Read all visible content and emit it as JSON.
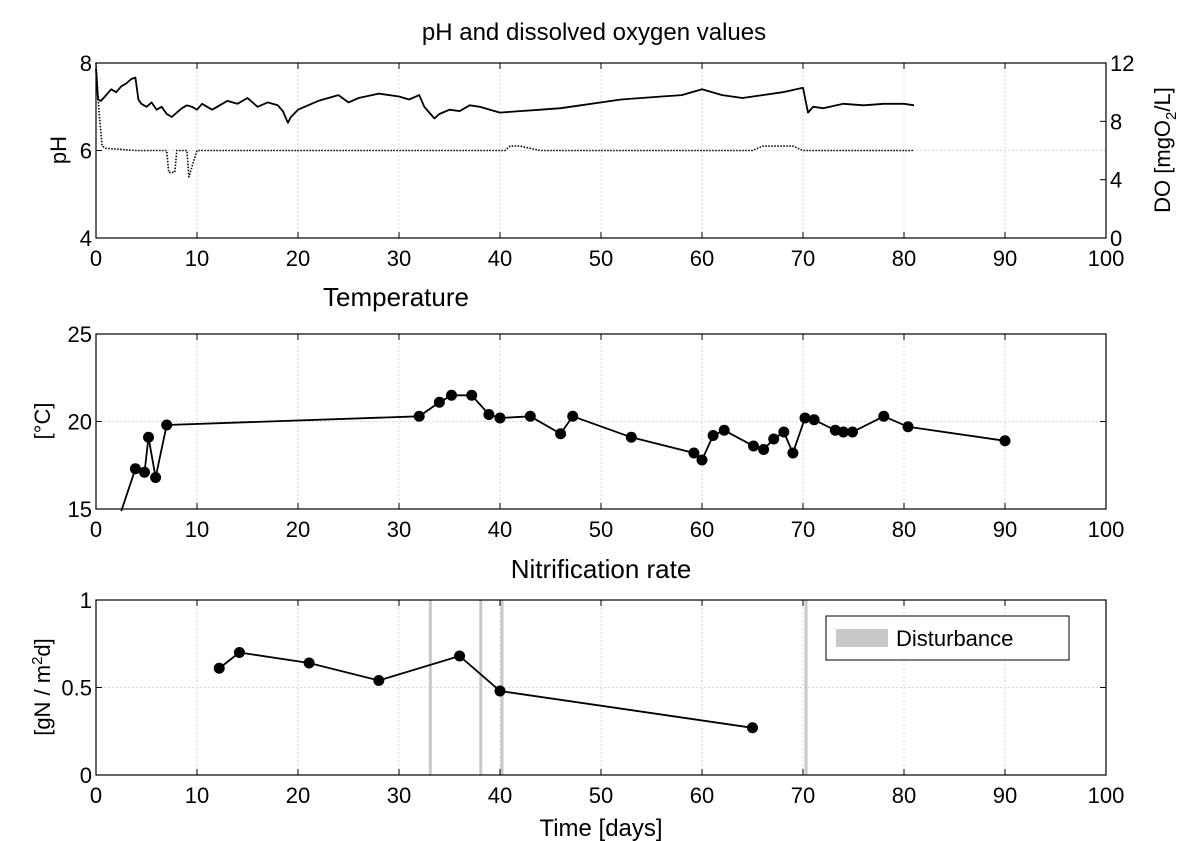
{
  "chart_data": [
    {
      "type": "line",
      "title": "pH and dissolved oxygen values",
      "xlabel": "",
      "ylabel": "pH",
      "ylabel_right": "DO [mgO2/L]",
      "xlim": [
        0,
        100
      ],
      "ylim": [
        4,
        8
      ],
      "ylim_right": [
        0,
        12
      ],
      "xticks": [
        0,
        10,
        20,
        30,
        40,
        50,
        60,
        70,
        80,
        90,
        100
      ],
      "yticks": [
        4,
        6,
        8
      ],
      "yticks_right": [
        0,
        4,
        8,
        12
      ],
      "grid": true,
      "series": [
        {
          "axis": "right",
          "style": "solid",
          "x": [
            0,
            0.2,
            0.5,
            1,
            1.5,
            2,
            2.5,
            3,
            3.5,
            3.9,
            4.2,
            4.5,
            5,
            5.5,
            6,
            6.5,
            7,
            7.5,
            8,
            8.5,
            9,
            9.5,
            10,
            10.5,
            11,
            11.5,
            12,
            13,
            14,
            15,
            16,
            17,
            18,
            18.5,
            19,
            19.3,
            20,
            22,
            24,
            25,
            26,
            28,
            30,
            31,
            32,
            32.5,
            33,
            33.5,
            34,
            35,
            36,
            37,
            38,
            39,
            40,
            42,
            44,
            46,
            48,
            50,
            52,
            54,
            56,
            58,
            60,
            62,
            64,
            66,
            68,
            70,
            70.5,
            71,
            72,
            74,
            76,
            78,
            80,
            81
          ],
          "values": [
            11.6,
            9.5,
            9.4,
            9.8,
            10.2,
            10.0,
            10.4,
            10.6,
            10.9,
            11.0,
            9.5,
            9.2,
            9.0,
            9.3,
            8.8,
            9.0,
            8.5,
            8.3,
            8.6,
            8.9,
            9.1,
            9.0,
            8.8,
            9.2,
            9.0,
            8.8,
            9.0,
            9.4,
            9.2,
            9.6,
            9.0,
            9.3,
            9.1,
            8.7,
            7.9,
            8.3,
            8.8,
            9.4,
            9.8,
            9.3,
            9.6,
            9.9,
            9.7,
            9.5,
            9.8,
            9.0,
            8.6,
            8.2,
            8.5,
            8.8,
            8.7,
            9.1,
            9.0,
            8.8,
            8.6,
            8.7,
            8.8,
            8.9,
            9.1,
            9.3,
            9.5,
            9.6,
            9.7,
            9.8,
            10.2,
            9.8,
            9.6,
            9.8,
            10.0,
            10.3,
            8.6,
            9.0,
            8.9,
            9.2,
            9.1,
            9.2,
            9.2,
            9.1
          ]
        },
        {
          "axis": "left",
          "style": "dotted",
          "x": [
            0,
            0.3,
            0.6,
            1,
            3.9,
            4.1,
            6,
            7,
            7.2,
            7.8,
            8,
            9,
            9.2,
            10,
            11,
            12,
            15,
            18,
            18.2,
            19,
            20,
            25,
            30,
            32,
            33,
            33.3,
            34,
            38,
            40,
            40.5,
            41,
            42,
            43,
            44,
            50,
            55,
            60,
            65,
            66,
            67,
            68,
            69,
            70,
            75,
            80,
            81
          ],
          "values": [
            8.0,
            6.9,
            6.1,
            6.05,
            6.0,
            6.0,
            6.0,
            6.0,
            5.5,
            5.5,
            6.0,
            6.0,
            5.4,
            6.0,
            6.0,
            6.0,
            6.0,
            6.0,
            6.0,
            6.0,
            6.0,
            6.0,
            6.0,
            6.0,
            6.0,
            6.0,
            6.0,
            6.0,
            6.0,
            6.0,
            6.1,
            6.1,
            6.05,
            6.0,
            6.0,
            6.0,
            6.0,
            6.0,
            6.1,
            6.1,
            6.1,
            6.1,
            6.0,
            6.0,
            6.0,
            6.0
          ]
        }
      ]
    },
    {
      "type": "line",
      "title": "Temperature",
      "xlabel": "",
      "ylabel": "[°C]",
      "xlim": [
        0,
        100
      ],
      "ylim": [
        15,
        25
      ],
      "xticks": [
        0,
        10,
        20,
        30,
        40,
        50,
        60,
        70,
        80,
        90,
        100
      ],
      "yticks": [
        15,
        20,
        25
      ],
      "grid": true,
      "x": [
        2.5,
        3.9,
        4.8,
        5.2,
        5.9,
        7,
        32,
        34,
        35.2,
        37.2,
        38.9,
        40,
        43,
        46,
        47.2,
        53,
        59.2,
        60,
        61.1,
        62.2,
        65.1,
        66.1,
        67.1,
        68.1,
        69,
        70.2,
        71.1,
        73.2,
        74,
        74.9,
        78,
        80.4,
        90
      ],
      "values": [
        14.8,
        17.3,
        17.1,
        19.1,
        16.8,
        19.8,
        20.3,
        21.1,
        21.5,
        21.5,
        20.4,
        20.2,
        20.3,
        19.3,
        20.3,
        19.1,
        18.2,
        17.8,
        19.2,
        19.5,
        18.6,
        18.4,
        19.0,
        19.4,
        18.2,
        20.2,
        20.1,
        19.5,
        19.4,
        19.4,
        20.3,
        19.7,
        18.9
      ],
      "markers_from_index": 1
    },
    {
      "type": "line",
      "title": "Nitrification rate",
      "xlabel": "Time [days]",
      "ylabel": "[gN / m2d]",
      "xlim": [
        0,
        100
      ],
      "ylim": [
        0,
        1
      ],
      "xticks": [
        0,
        10,
        20,
        30,
        40,
        50,
        60,
        70,
        80,
        90,
        100
      ],
      "yticks": [
        0,
        0.5,
        1
      ],
      "grid": true,
      "x": [
        12.2,
        14.2,
        21.1,
        28,
        36,
        40,
        65
      ],
      "values": [
        0.61,
        0.7,
        0.64,
        0.54,
        0.68,
        0.48,
        0.27
      ],
      "disturbances": [
        33.1,
        38.1,
        40.2,
        70.3
      ],
      "legend": {
        "label": "Disturbance",
        "position": "top-right",
        "color": "#c8c8c8"
      }
    }
  ]
}
